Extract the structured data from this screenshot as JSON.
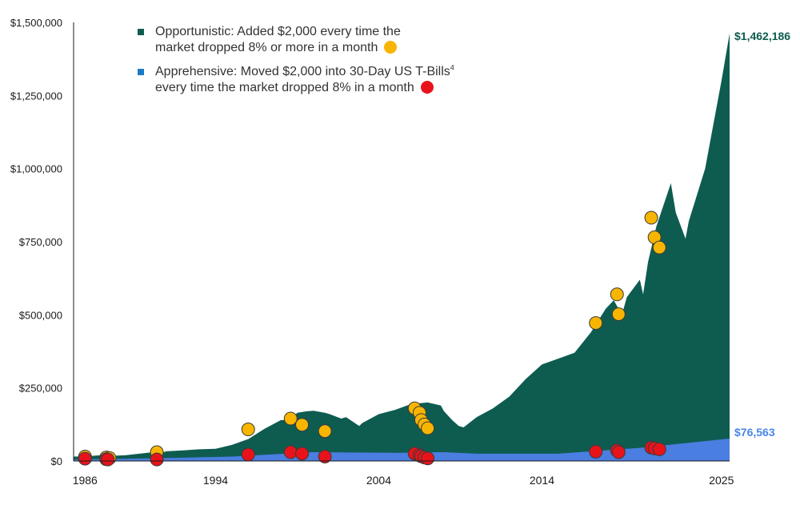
{
  "colors": {
    "opportunistic": "#0e5c50",
    "apprehensive": "#4a7ee0",
    "apprehensive_label": "#4a86e8",
    "legend_square_blue": "#1a7bc4",
    "buy_dot": "#f7b500",
    "sell_dot": "#e8131a",
    "axis": "#1a1a1a"
  },
  "legend": {
    "opportunistic_line1": "Opportunistic: Added $2,000 every time the",
    "opportunistic_line2": "market dropped 8% or more in a month",
    "apprehensive_line1": "Apprehensive: Moved $2,000 into 30-Day US T-Bills",
    "apprehensive_sup": "4",
    "apprehensive_line2": "every time the market dropped 8% in a month"
  },
  "chart_data": {
    "type": "area",
    "title": "",
    "xlabel": "",
    "ylabel": "",
    "xlim": [
      1985.3,
      2025.5
    ],
    "ylim": [
      0,
      1500000
    ],
    "y_ticks": [
      0,
      250000,
      500000,
      750000,
      1000000,
      1250000,
      1500000
    ],
    "y_tick_labels": [
      "$0",
      "$250,000",
      "$500,000",
      "$750,000",
      "$1,000,000",
      "$1,250,000",
      "$1,500,000"
    ],
    "x_ticks": [
      1986,
      1994,
      2004,
      2014,
      2025
    ],
    "x_tick_labels": [
      "1986",
      "1994",
      "2004",
      "2014",
      "2025"
    ],
    "legend_position": "top-left",
    "grid": false,
    "series": [
      {
        "name": "Opportunistic",
        "end_label": "$1,462,186",
        "x": [
          1985.3,
          1986,
          1987,
          1987.9,
          1988.5,
          1989.5,
          1990,
          1990.6,
          1991,
          1992,
          1993,
          1994,
          1995,
          1996,
          1997,
          1998,
          1998.6,
          1999,
          1999.6,
          2000,
          2000.7,
          2001,
          2001.7,
          2002,
          2002.8,
          2003,
          2004,
          2005,
          2006,
          2007,
          2007.8,
          2008,
          2008.5,
          2008.9,
          2009.2,
          2010,
          2011,
          2012,
          2013,
          2014,
          2015,
          2016,
          2017,
          2017.9,
          2018.4,
          2018.9,
          2019.2,
          2020,
          2020.2,
          2020.5,
          2021,
          2021.9,
          2022.2,
          2022.8,
          2023,
          2024,
          2024.5,
          2025,
          2025.5
        ],
        "values": [
          15000,
          16000,
          20000,
          18000,
          20000,
          26000,
          29000,
          27000,
          33000,
          36000,
          40000,
          42000,
          55000,
          75000,
          110000,
          140000,
          140000,
          165000,
          170000,
          172000,
          165000,
          160000,
          145000,
          150000,
          120000,
          130000,
          160000,
          175000,
          195000,
          200000,
          190000,
          170000,
          140000,
          120000,
          115000,
          150000,
          180000,
          220000,
          280000,
          330000,
          350000,
          370000,
          440000,
          520000,
          550000,
          500000,
          560000,
          620000,
          570000,
          680000,
          800000,
          950000,
          850000,
          760000,
          820000,
          1000000,
          1150000,
          1300000,
          1462186
        ]
      },
      {
        "name": "Apprehensive",
        "end_label": "$76,563",
        "x": [
          1985.3,
          1990,
          1995,
          2000,
          2005,
          2008,
          2010,
          2015,
          2020,
          2025.5
        ],
        "values": [
          5000,
          9000,
          15000,
          30000,
          28000,
          30000,
          25000,
          25000,
          45000,
          76563
        ]
      }
    ],
    "annotations": {
      "buy_dots": [
        [
          1986.0,
          15000
        ],
        [
          1987.3,
          12000
        ],
        [
          1987.5,
          10000
        ],
        [
          1990.4,
          30000
        ],
        [
          1996.0,
          108000
        ],
        [
          1998.6,
          145000
        ],
        [
          1999.3,
          124000
        ],
        [
          2000.7,
          102000
        ],
        [
          2006.2,
          180000
        ],
        [
          2006.5,
          165000
        ],
        [
          2006.6,
          140000
        ],
        [
          2006.8,
          125000
        ],
        [
          2007.0,
          112000
        ],
        [
          2017.3,
          472000
        ],
        [
          2018.6,
          570000
        ],
        [
          2018.7,
          502000
        ],
        [
          2020.7,
          832000
        ],
        [
          2020.9,
          765000
        ],
        [
          2021.2,
          730000
        ]
      ],
      "sell_dots": [
        [
          1986.0,
          8000
        ],
        [
          1987.3,
          6000
        ],
        [
          1987.4,
          5000
        ],
        [
          1990.4,
          5000
        ],
        [
          1996.0,
          22000
        ],
        [
          1998.6,
          30000
        ],
        [
          1999.3,
          25000
        ],
        [
          2000.7,
          15000
        ],
        [
          2006.2,
          25000
        ],
        [
          2006.5,
          20000
        ],
        [
          2006.6,
          16000
        ],
        [
          2006.8,
          12000
        ],
        [
          2007.0,
          9000
        ],
        [
          2017.3,
          32000
        ],
        [
          2018.6,
          36000
        ],
        [
          2018.7,
          30000
        ],
        [
          2020.7,
          46000
        ],
        [
          2020.9,
          43000
        ],
        [
          2021.2,
          40000
        ]
      ]
    }
  }
}
